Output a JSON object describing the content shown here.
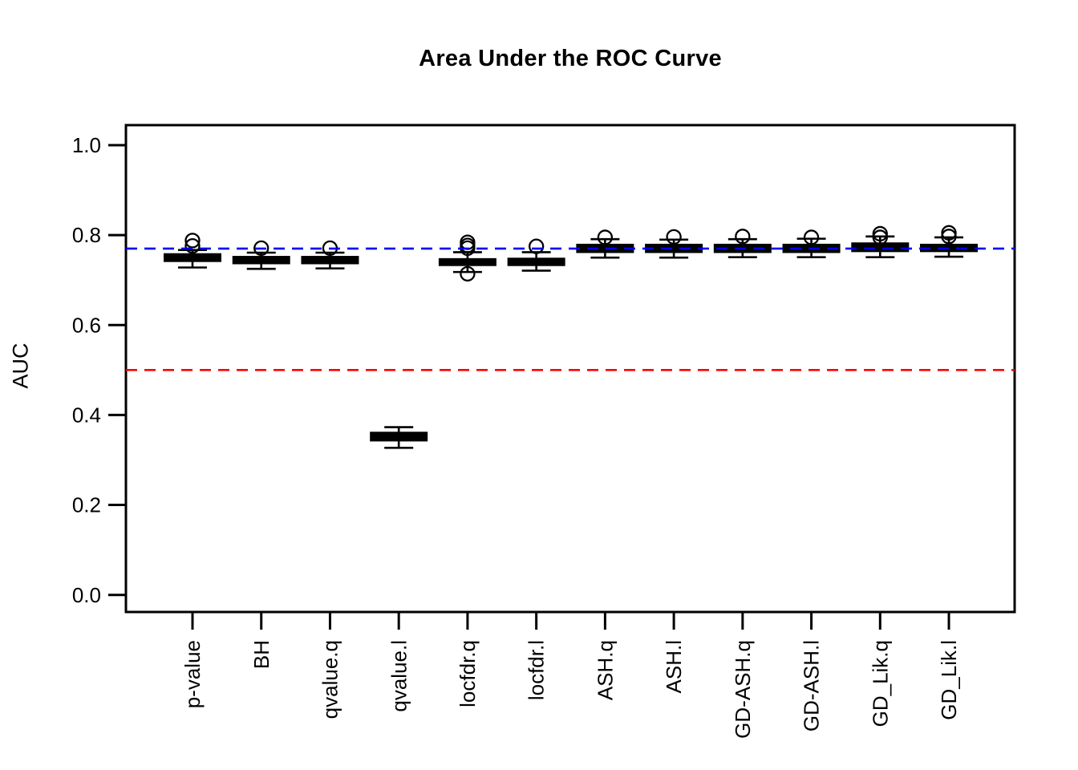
{
  "figure": {
    "title": "Area Under the ROC Curve",
    "background_color": "#ffffff",
    "foreground_color": "#000000"
  },
  "chart_data": {
    "type": "boxplot",
    "title": "Area Under the ROC Curve",
    "xlabel": "",
    "ylabel": "AUC",
    "ylim": [
      -0.04,
      1.04
    ],
    "grid": false,
    "legend": null,
    "y_ticks": [
      0.0,
      0.2,
      0.4,
      0.6,
      0.8,
      1.0
    ],
    "y_tick_labels": [
      "0.0",
      "0.2",
      "0.4",
      "0.6",
      "0.8",
      "1.0"
    ],
    "categories": [
      "p-value",
      "BH",
      "qvalue.q",
      "qvalue.l",
      "locfdr.q",
      "locfdr.l",
      "ASH.q",
      "ASH.l",
      "GD-ASH.q",
      "GD-ASH.l",
      "GD_Lik.q",
      "GD_Lik.l"
    ],
    "boxes": [
      {
        "label": "p-value",
        "q1": 0.742,
        "median": 0.75,
        "q3": 0.758,
        "whisker_low": 0.728,
        "whisker_high": 0.767,
        "outliers": [
          0.788,
          0.776
        ]
      },
      {
        "label": "BH",
        "q1": 0.737,
        "median": 0.745,
        "q3": 0.752,
        "whisker_low": 0.725,
        "whisker_high": 0.761,
        "outliers": [
          0.771
        ]
      },
      {
        "label": "qvalue.q",
        "q1": 0.737,
        "median": 0.745,
        "q3": 0.752,
        "whisker_low": 0.726,
        "whisker_high": 0.761,
        "outliers": [
          0.771
        ]
      },
      {
        "label": "qvalue.l",
        "q1": 0.343,
        "median": 0.352,
        "q3": 0.361,
        "whisker_low": 0.327,
        "whisker_high": 0.373,
        "outliers": []
      },
      {
        "label": "locfdr.q",
        "q1": 0.733,
        "median": 0.74,
        "q3": 0.747,
        "whisker_low": 0.718,
        "whisker_high": 0.762,
        "outliers": [
          0.784,
          0.777,
          0.771,
          0.714
        ]
      },
      {
        "label": "locfdr.l",
        "q1": 0.733,
        "median": 0.741,
        "q3": 0.748,
        "whisker_low": 0.721,
        "whisker_high": 0.762,
        "outliers": [
          0.775
        ]
      },
      {
        "label": "ASH.q",
        "q1": 0.762,
        "median": 0.77,
        "q3": 0.779,
        "whisker_low": 0.75,
        "whisker_high": 0.791,
        "outliers": [
          0.795
        ]
      },
      {
        "label": "ASH.l",
        "q1": 0.762,
        "median": 0.77,
        "q3": 0.779,
        "whisker_low": 0.75,
        "whisker_high": 0.79,
        "outliers": [
          0.796
        ]
      },
      {
        "label": "GD-ASH.q",
        "q1": 0.762,
        "median": 0.771,
        "q3": 0.779,
        "whisker_low": 0.751,
        "whisker_high": 0.791,
        "outliers": [
          0.797
        ]
      },
      {
        "label": "GD-ASH.l",
        "q1": 0.762,
        "median": 0.77,
        "q3": 0.779,
        "whisker_low": 0.751,
        "whisker_high": 0.792,
        "outliers": [
          0.795
        ]
      },
      {
        "label": "GD_Lik.q",
        "q1": 0.764,
        "median": 0.772,
        "q3": 0.782,
        "whisker_low": 0.751,
        "whisker_high": 0.797,
        "outliers": [
          0.803,
          0.795
        ]
      },
      {
        "label": "GD_Lik.l",
        "q1": 0.764,
        "median": 0.772,
        "q3": 0.779,
        "whisker_low": 0.752,
        "whisker_high": 0.795,
        "outliers": [
          0.805,
          0.797
        ]
      }
    ],
    "reference_lines": [
      {
        "name": "blue-reference-line",
        "value": 0.77,
        "color": "#0000FF",
        "style": "dashed"
      },
      {
        "name": "red-reference-line",
        "value": 0.5,
        "color": "#FF0000",
        "style": "dashed"
      }
    ],
    "colors": {
      "box_fill": "#000000",
      "box_stroke": "#000000",
      "axis": "#000000"
    }
  }
}
